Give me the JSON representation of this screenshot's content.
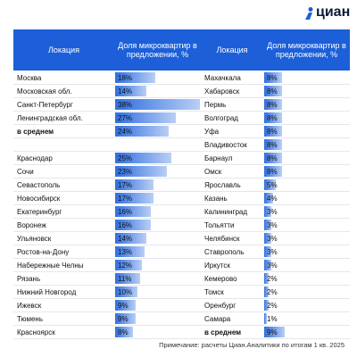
{
  "logo": "циан",
  "columns": [
    {
      "header": {
        "location": "Локация",
        "share": "Доля микроквартир в предложении, %"
      },
      "rows": [
        {
          "location": "Москва",
          "value": 18,
          "label": "18%"
        },
        {
          "location": "Московская обл.",
          "value": 14,
          "label": "14%"
        },
        {
          "location": "Санкт-Петербург",
          "value": 38,
          "label": "38%"
        },
        {
          "location": "Ленинградская обл.",
          "value": 27,
          "label": "27%"
        },
        {
          "location": "в среднем",
          "value": 24,
          "label": "24%",
          "emphasis": true
        },
        null,
        {
          "location": "Краснодар",
          "value": 25,
          "label": "25%"
        },
        {
          "location": "Сочи",
          "value": 23,
          "label": "23%"
        },
        {
          "location": "Севастополь",
          "value": 17,
          "label": "17%"
        },
        {
          "location": "Новосибирск",
          "value": 17,
          "label": "17%"
        },
        {
          "location": "Екатеринбург",
          "value": 16,
          "label": "16%"
        },
        {
          "location": "Воронеж",
          "value": 16,
          "label": "16%"
        },
        {
          "location": "Ульяновск",
          "value": 14,
          "label": "14%"
        },
        {
          "location": "Ростов-на-Дону",
          "value": 13,
          "label": "13%"
        },
        {
          "location": "Набережные Челны",
          "value": 12,
          "label": "12%"
        },
        {
          "location": "Рязань",
          "value": 11,
          "label": "11%"
        },
        {
          "location": "Нижний Новгород",
          "value": 10,
          "label": "10%"
        },
        {
          "location": "Ижевск",
          "value": 9,
          "label": "9%"
        },
        {
          "location": "Тюмень",
          "value": 9,
          "label": "9%"
        },
        {
          "location": "Красноярск",
          "value": 8,
          "label": "8%"
        }
      ]
    },
    {
      "header": {
        "location": "Локация",
        "share": "Доля микроквартир в предложении, %"
      },
      "rows": [
        {
          "location": "Махачкала",
          "value": 8,
          "label": "8%"
        },
        {
          "location": "Хабаровск",
          "value": 8,
          "label": "8%"
        },
        {
          "location": "Пермь",
          "value": 8,
          "label": "8%"
        },
        {
          "location": "Волгоград",
          "value": 8,
          "label": "8%"
        },
        {
          "location": "Уфа",
          "value": 8,
          "label": "8%"
        },
        {
          "location": "Владивосток",
          "value": 8,
          "label": "8%"
        },
        {
          "location": "Барнаул",
          "value": 8,
          "label": "8%"
        },
        {
          "location": "Омск",
          "value": 8,
          "label": "8%"
        },
        {
          "location": "Ярославль",
          "value": 5,
          "label": "5%"
        },
        {
          "location": "Казань",
          "value": 4,
          "label": "4%"
        },
        {
          "location": "Калининград",
          "value": 3,
          "label": "3%"
        },
        {
          "location": "Тольятти",
          "value": 3,
          "label": "3%"
        },
        {
          "location": "Челябинск",
          "value": 3,
          "label": "3%"
        },
        {
          "location": "Ставрополь",
          "value": 3,
          "label": "3%"
        },
        {
          "location": "Иркутск",
          "value": 3,
          "label": "3%"
        },
        {
          "location": "Кемерово",
          "value": 2,
          "label": "2%"
        },
        {
          "location": "Томск",
          "value": 2,
          "label": "2%"
        },
        {
          "location": "Оренбург",
          "value": 2,
          "label": "2%"
        },
        {
          "location": "Самара",
          "value": 1,
          "label": "1%"
        },
        {
          "location": "в среднем",
          "value": 9,
          "label": "9%",
          "emphasis": true
        }
      ]
    }
  ],
  "note": "Примечание: расчеты Циан.Аналитики по итогам 1 кв. 2025"
}
